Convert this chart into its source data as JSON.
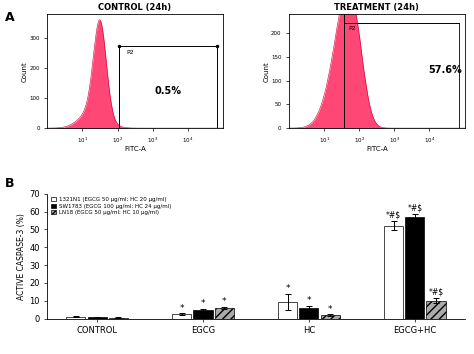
{
  "panel_a": {
    "control_title": "CONTROL (24h)",
    "treatment_title": "TREATMENT (24h)",
    "control_pct": "0.5%",
    "treatment_pct": "57.6%",
    "xlabel": "FITC-A",
    "ylabel": "Count",
    "gate_label": "P2",
    "fill_color": "#FF3366",
    "edge_color": "#CC0033",
    "ctrl_yticks": [
      0,
      100,
      200,
      300
    ],
    "ctrl_ylim": 380,
    "trt_yticks": [
      0,
      50,
      100,
      150,
      200
    ],
    "trt_ylim": 240
  },
  "panel_b": {
    "ylabel": "ACTIVE CASPASE-3 (%)",
    "groups": [
      "CONTROL",
      "EGCG",
      "HC",
      "EGCG+HC"
    ],
    "legend_labels": [
      "1321N1 (EGCG 50 μg/ml; HC 20 μg/ml)",
      "SW1783 (EGCG 100 μg/ml; HC 24 μg/ml)",
      "LN18 (EGCG 50 μg/ml; HC 10 μg/ml)"
    ],
    "bar_colors": [
      "#ffffff",
      "#000000",
      "#aaaaaa"
    ],
    "bar_hatches": [
      "",
      "",
      "////"
    ],
    "values": [
      [
        1.0,
        2.5,
        9.5,
        52.0
      ],
      [
        0.8,
        5.0,
        6.0,
        57.0
      ],
      [
        0.5,
        6.0,
        2.0,
        10.0
      ]
    ],
    "errors": [
      [
        0.3,
        0.4,
        4.5,
        2.5
      ],
      [
        0.2,
        0.5,
        1.0,
        1.5
      ],
      [
        0.2,
        0.5,
        0.4,
        1.5
      ]
    ],
    "ylim": [
      0,
      70
    ],
    "yticks": [
      0,
      10,
      20,
      30,
      40,
      50,
      60,
      70
    ]
  }
}
